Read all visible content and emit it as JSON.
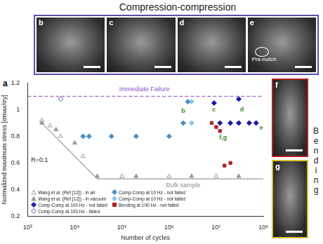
{
  "figure": {
    "title": "Compression-compression",
    "side_label": "Bending",
    "chart_label": "a",
    "panels": [
      {
        "label": "b"
      },
      {
        "label": "c"
      },
      {
        "label": "d"
      },
      {
        "label": "e",
        "note": "Pre-notch"
      }
    ],
    "side_panels": [
      {
        "label": "f"
      },
      {
        "label": "g"
      }
    ]
  },
  "chart_data": {
    "type": "scatter",
    "x_label": "Number of cycles",
    "y_label": "Normalized maximum stress [σmax/σy]",
    "log": "x",
    "grid": false,
    "legend": "lower left",
    "xlim": [
      1000,
      100000000
    ],
    "xticks": [
      {
        "value": 1000,
        "label": "10³"
      },
      {
        "value": 10000,
        "label": "10⁴"
      },
      {
        "value": 100000,
        "label": "10⁵"
      },
      {
        "value": 1000000,
        "label": "10⁶"
      },
      {
        "value": 10000000,
        "label": "10⁷"
      },
      {
        "value": 100000000,
        "label": "10⁸"
      }
    ],
    "ylim": [
      0.2,
      1.2
    ],
    "yticks": [
      0.2,
      0.4,
      0.6,
      0.8,
      1,
      1.2
    ],
    "series": [
      {
        "name": "Wang et al. (Ref [12]) - in air",
        "color": "#9a9a9a",
        "marker": "triangle-open",
        "x": [
          2000,
          3000,
          5000,
          15000,
          100000,
          1000000,
          10000000
        ],
        "values": [
          0.92,
          0.88,
          0.8,
          0.65,
          0.5,
          0.5,
          0.5
        ]
      },
      {
        "name": "Wang et al. (Ref [12]) - in vacuum",
        "color": "#9a9a9a",
        "marker": "triangle",
        "x": [
          2000,
          4000,
          10000,
          30000,
          200000,
          3000000,
          30000000
        ],
        "values": [
          0.9,
          0.85,
          0.75,
          0.5,
          0.5,
          0.5,
          0.5
        ]
      },
      {
        "name": "Comp-Comp at 100 Hz - not failed",
        "color": "#1a1aa8",
        "marker": "diamond",
        "x": [
          9000000,
          12000000,
          20000000,
          30000000,
          30000000,
          50000000,
          70000000
        ],
        "values": [
          1.05,
          0.9,
          0.9,
          1.08,
          0.9,
          0.9,
          0.9
        ]
      },
      {
        "name": "Comp-Comp at 100 Hz - failed",
        "color": "#5555cc",
        "marker": "diamond-open",
        "x": [
          5000
        ],
        "values": [
          1.08
        ]
      },
      {
        "name": "Comp-Comp at 10 Hz - not failed",
        "color": "#4a90c8",
        "marker": "diamond",
        "x": [
          15000,
          20000,
          60000,
          200000,
          1000000,
          2000000,
          2500000
        ],
        "values": [
          0.8,
          0.8,
          0.8,
          0.8,
          0.8,
          0.9,
          1.06
        ]
      },
      {
        "name": "Comp-Comp at 10 Hz - not failed",
        "color": "#8ec8ec",
        "marker": "diamond",
        "x": [
          3000000,
          3000000
        ],
        "values": [
          1.06,
          0.9
        ]
      },
      {
        "name": "Bending at 100 Hz - not failed",
        "color": "#b02020",
        "marker": "square",
        "x": [
          8000000,
          10000000,
          12000000,
          15000000,
          20000000
        ],
        "values": [
          0.9,
          0.87,
          0.84,
          0.58,
          0.6
        ]
      },
      {
        "type": "line",
        "color": "#9a9a9a",
        "line_style": "solid",
        "x": [
          2000,
          30000,
          100000000
        ],
        "values": [
          0.9,
          0.48,
          0.48
        ]
      },
      {
        "type": "line",
        "color": "#a066cc",
        "line_style": "dashed",
        "x": [
          1000,
          100000000
        ],
        "values": [
          1.1,
          1.1
        ]
      }
    ],
    "annotations": [
      {
        "text": "Immediate Failure",
        "x": 300000,
        "y": 1.15,
        "color": "#8a4fc0"
      },
      {
        "text": "R=0.1",
        "x": 1800,
        "y": 0.62,
        "color": "#222222"
      },
      {
        "text": "Bulk sample",
        "x": 2000000,
        "y": 0.43,
        "color": "#8a8a8a"
      },
      {
        "text": "b",
        "x": 2000000,
        "y": 0.99,
        "color": "#3a8a2a"
      },
      {
        "text": "c",
        "x": 9000000,
        "y": 1.0,
        "color": "#3a8a2a"
      },
      {
        "text": "d",
        "x": 35000000,
        "y": 1.0,
        "color": "#3a8a2a"
      },
      {
        "text": "e",
        "x": 90000000,
        "y": 0.86,
        "color": "#3a8a2a"
      },
      {
        "text": "f,g",
        "x": 14000000,
        "y": 0.79,
        "color": "#3a8a2a"
      }
    ]
  }
}
